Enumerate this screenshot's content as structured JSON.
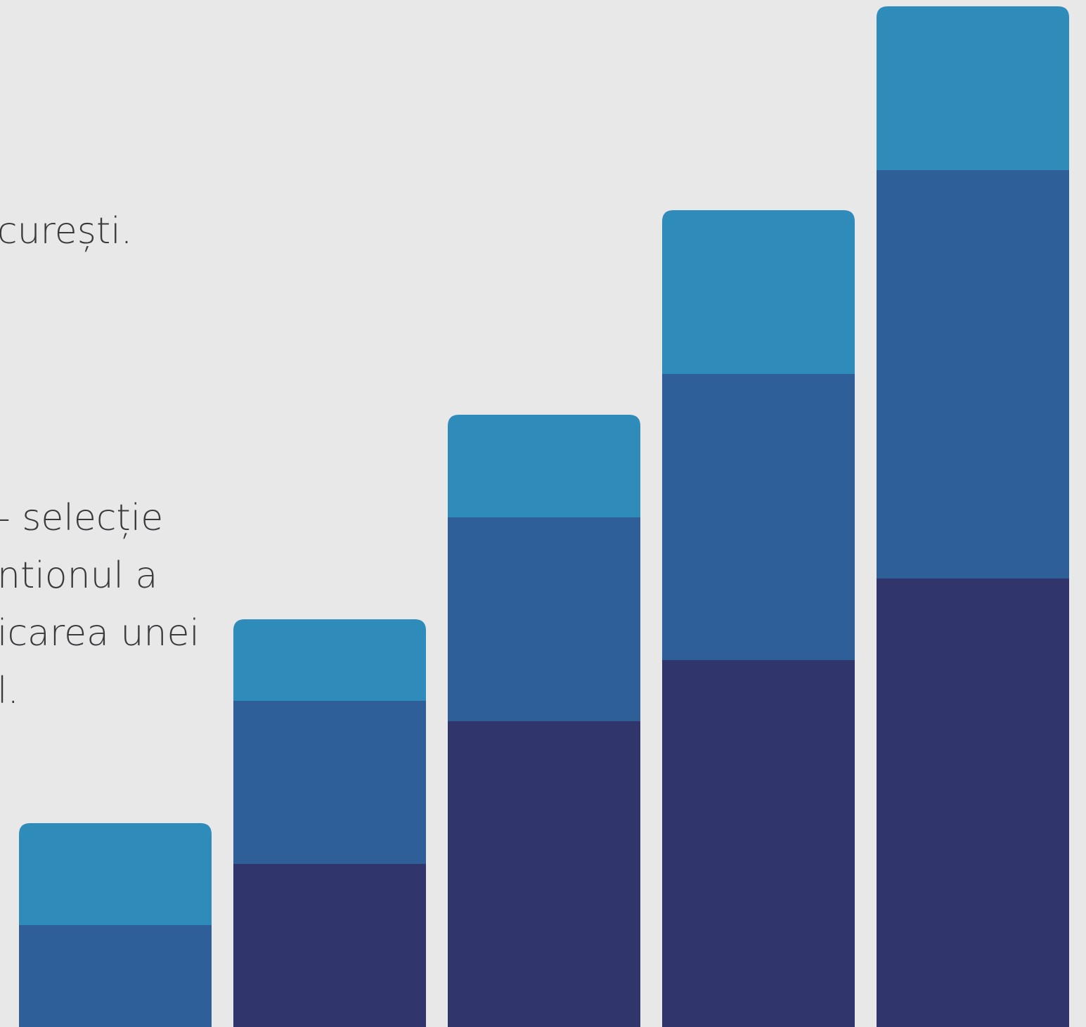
{
  "text_fragments": {
    "top_line": "curești.",
    "paragraph_lines": [
      "- selecție",
      "ntionul a",
      "icarea unei",
      "l."
    ]
  },
  "colors": {
    "background": "#e8e8e8",
    "text": "#3a3a3e",
    "segment_top": "#2e8bba",
    "segment_middle": "#2e5f98",
    "segment_bottom": "#30356c"
  },
  "bar_graphic": {
    "bar_count": 5,
    "trend": "increasing left to right, three stacked segments per bar"
  }
}
